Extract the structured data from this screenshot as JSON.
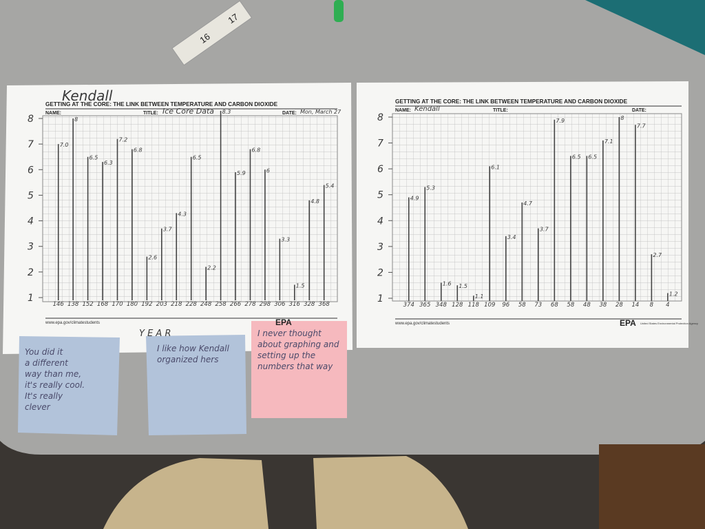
{
  "ruler": {
    "marks": [
      "16",
      "17"
    ]
  },
  "sheets": [
    {
      "author": "Kendall",
      "header": "GETTING AT THE CORE: THE LINK BETWEEN TEMPERATURE AND CARBON DIOXIDE",
      "name_label": "NAME:",
      "title_label": "TITLE:",
      "title": "Ice Core Data",
      "date_label": "DATE:",
      "date": "Mon, March 27",
      "url": "www.epa.gov/climatestudents",
      "logo": "EPA",
      "x_axis_label": "Y E A R",
      "chart": {
        "type": "bar",
        "ylim": [
          1,
          8
        ],
        "yticks": [
          1,
          2,
          3,
          4,
          5,
          6,
          7,
          8
        ],
        "categories": [
          "146",
          "138",
          "152",
          "168",
          "170",
          "180",
          "192",
          "203",
          "218",
          "228",
          "248",
          "258",
          "266",
          "278",
          "298",
          "306",
          "316",
          "328",
          "368"
        ],
        "values": [
          7.0,
          8,
          6.5,
          6.3,
          7.2,
          6.8,
          2.6,
          3.7,
          4.3,
          6.5,
          2.2,
          8.3,
          5.9,
          6.8,
          6,
          3.3,
          1.5,
          4.8,
          5.4
        ],
        "value_labels": [
          "7.0",
          "8",
          "6.5",
          "6.3",
          "7.2",
          "6.8",
          "2.6",
          "3.7",
          "4.3",
          "6.5",
          "2.2",
          "8.3",
          "5.9",
          "6.8",
          "6",
          "3.3",
          "1.5",
          "4.8",
          "5.4"
        ]
      }
    },
    {
      "header": "GETTING AT THE CORE: THE LINK BETWEEN TEMPERATURE AND CARBON DIOXIDE",
      "name_label": "NAME:",
      "name": "Kendall",
      "title_label": "TITLE:",
      "date_label": "DATE:",
      "url": "www.epa.gov/climatestudents",
      "logo": "EPA",
      "agency": "United States Environmental Protection Agency",
      "chart": {
        "type": "bar",
        "ylim": [
          1,
          8
        ],
        "yticks": [
          1,
          2,
          3,
          4,
          5,
          6,
          7,
          8
        ],
        "categories": [
          "374",
          "365",
          "348",
          "128",
          "118",
          "109",
          "96",
          "58",
          "73",
          "68",
          "58",
          "48",
          "38",
          "28",
          "14",
          "8",
          "4"
        ],
        "values": [
          4.9,
          5.3,
          1.6,
          1.5,
          1.1,
          6.1,
          3.4,
          4.7,
          3.7,
          7.9,
          6.5,
          6.5,
          7.1,
          8,
          7.7,
          2.7,
          1.2
        ]
      }
    }
  ],
  "notes": [
    {
      "text": [
        "You did it",
        "a different",
        "way than me,",
        "it's really cool.",
        "It's really",
        "clever"
      ]
    },
    {
      "text": [
        "I like how Kendall",
        "organized hers"
      ]
    },
    {
      "text": [
        "I never thought",
        "about graphing and",
        "setting up the",
        "numbers that way"
      ]
    }
  ]
}
